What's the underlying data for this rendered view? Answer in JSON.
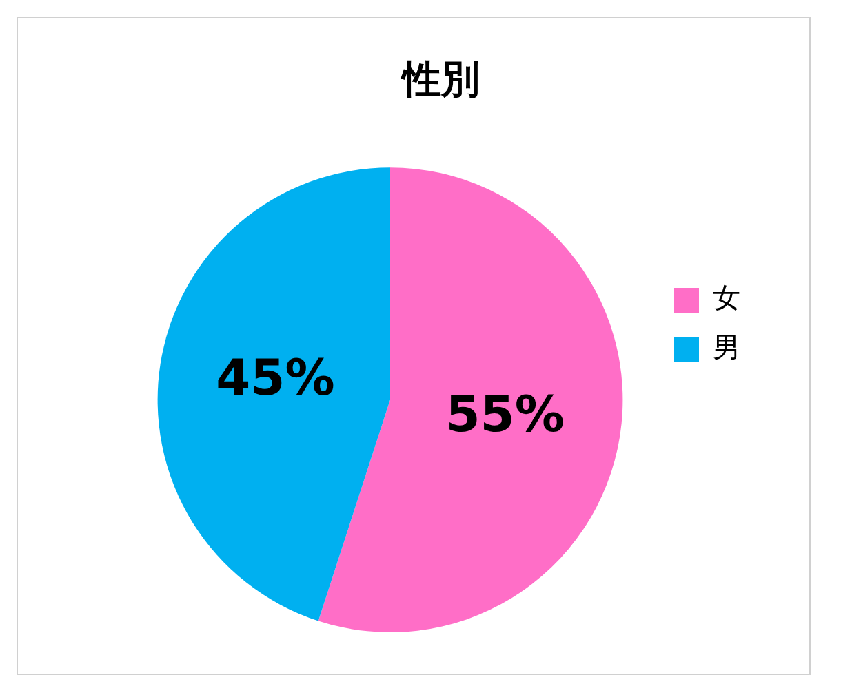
{
  "chart_data": {
    "type": "pie",
    "title": "性別",
    "categories": [
      "女",
      "男"
    ],
    "values": [
      55,
      45
    ],
    "colors": [
      "#ff6ec7",
      "#00b0f0"
    ],
    "value_labels": [
      "55%",
      "45%"
    ],
    "legend": "right"
  }
}
